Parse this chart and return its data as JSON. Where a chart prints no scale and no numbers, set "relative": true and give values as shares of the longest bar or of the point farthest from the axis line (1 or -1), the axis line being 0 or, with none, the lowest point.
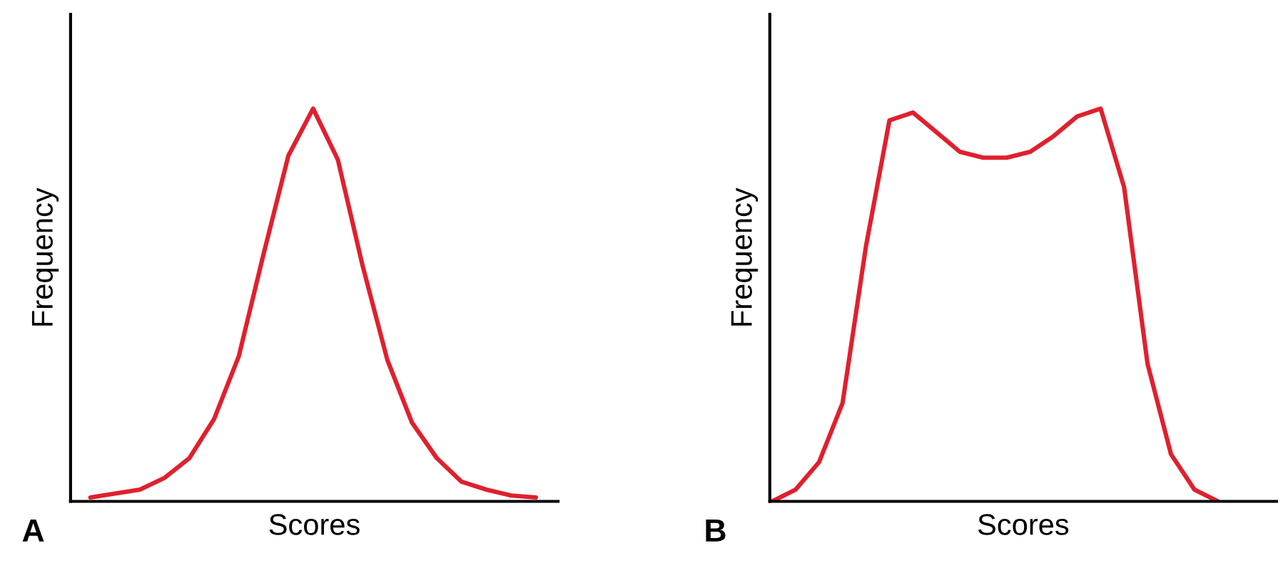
{
  "chart_data": [
    {
      "type": "line",
      "relative": true,
      "xlabel": "Scores",
      "ylabel": "Frequency",
      "annotations": [
        "A"
      ],
      "categories": [
        null,
        null,
        null,
        null,
        null,
        null,
        null,
        null,
        null,
        null,
        null,
        null,
        null,
        null,
        null,
        null,
        null,
        null,
        null
      ],
      "series": [
        {
          "color": "#e0202e",
          "values": [
            0.01,
            0.02,
            0.03,
            0.06,
            0.11,
            0.21,
            0.37,
            0.63,
            0.88,
            1.0,
            0.87,
            0.6,
            0.36,
            0.2,
            0.11,
            0.05,
            0.03,
            0.015,
            0.01
          ]
        }
      ]
    },
    {
      "type": "line",
      "relative": true,
      "xlabel": "Scores",
      "ylabel": "Frequency",
      "annotations": [
        "B"
      ],
      "categories": [
        null,
        null,
        null,
        null,
        null,
        null,
        null,
        null,
        null,
        null,
        null,
        null,
        null,
        null,
        null,
        null,
        null,
        null,
        null,
        null
      ],
      "series": [
        {
          "color": "#e0202e",
          "values": [
            0,
            0.03,
            0.1,
            0.25,
            0.65,
            0.97,
            0.99,
            0.94,
            0.89,
            0.875,
            0.875,
            0.89,
            0.93,
            0.98,
            1.0,
            0.8,
            0.35,
            0.12,
            0.03,
            0
          ]
        }
      ]
    }
  ]
}
